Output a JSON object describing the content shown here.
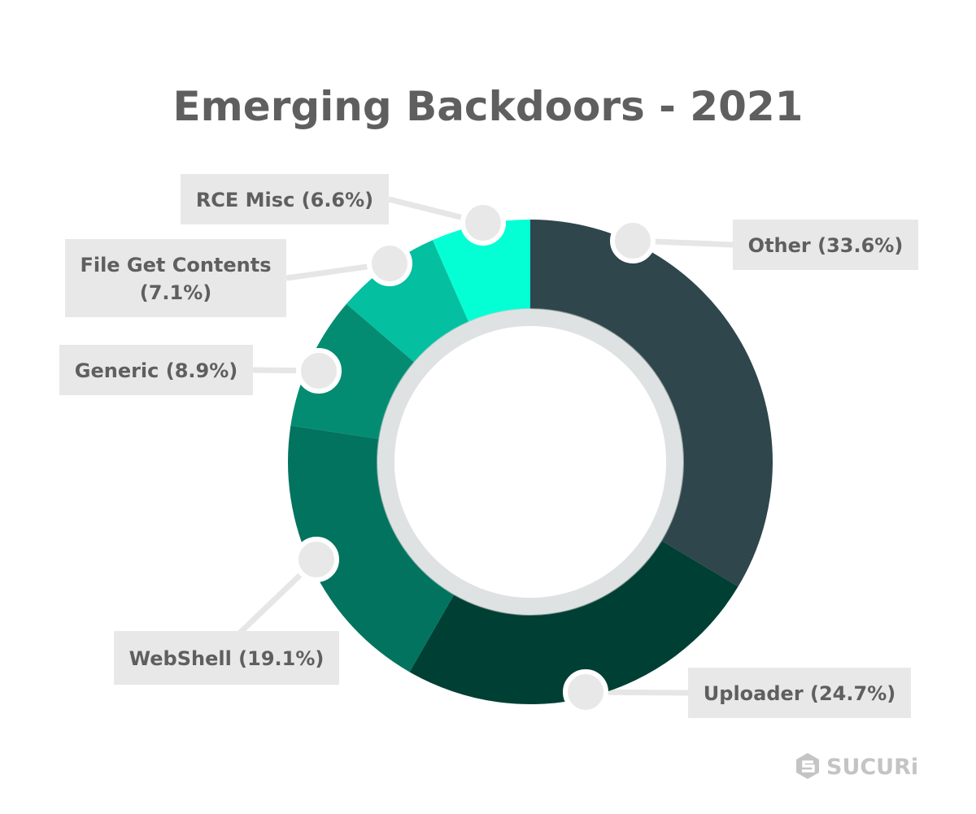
{
  "chart_data": {
    "type": "pie",
    "style": "donut",
    "title": "Emerging Backdoors - 2021",
    "slices": [
      {
        "name": "Other",
        "value": 33.6,
        "label_lines": [
          "Other (33.6%)"
        ],
        "color": "#2E464C"
      },
      {
        "name": "Uploader",
        "value": 24.7,
        "label_lines": [
          "Uploader (24.7%)"
        ],
        "color": "#003F34"
      },
      {
        "name": "WebShell",
        "value": 19.1,
        "label_lines": [
          "WebShell (19.1%)"
        ],
        "color": "#02735E"
      },
      {
        "name": "Generic",
        "value": 8.9,
        "label_lines": [
          "Generic (8.9%)"
        ],
        "color": "#038C72"
      },
      {
        "name": "File Get Contents",
        "value": 7.1,
        "label_lines": [
          "File Get Contents",
          "(7.1%)"
        ],
        "color": "#04BFA0"
      },
      {
        "name": "RCE Misc",
        "value": 6.6,
        "label_lines": [
          "RCE Misc (6.6%)"
        ],
        "color": "#05FFD5"
      }
    ],
    "start_angle": "12 o'clock",
    "direction": "clockwise",
    "legend": "none",
    "colors": {
      "title": "#5F5F5F",
      "label_box": "#E8E8E8",
      "label_text": "#5F5F5F",
      "connector": "#E6E6E6",
      "inner_ring": "#C9CFCF"
    }
  },
  "branding": {
    "logo_text": "SUCURi",
    "logo_icon": "sucuri-logo-icon",
    "color": "#C4C4C4"
  }
}
